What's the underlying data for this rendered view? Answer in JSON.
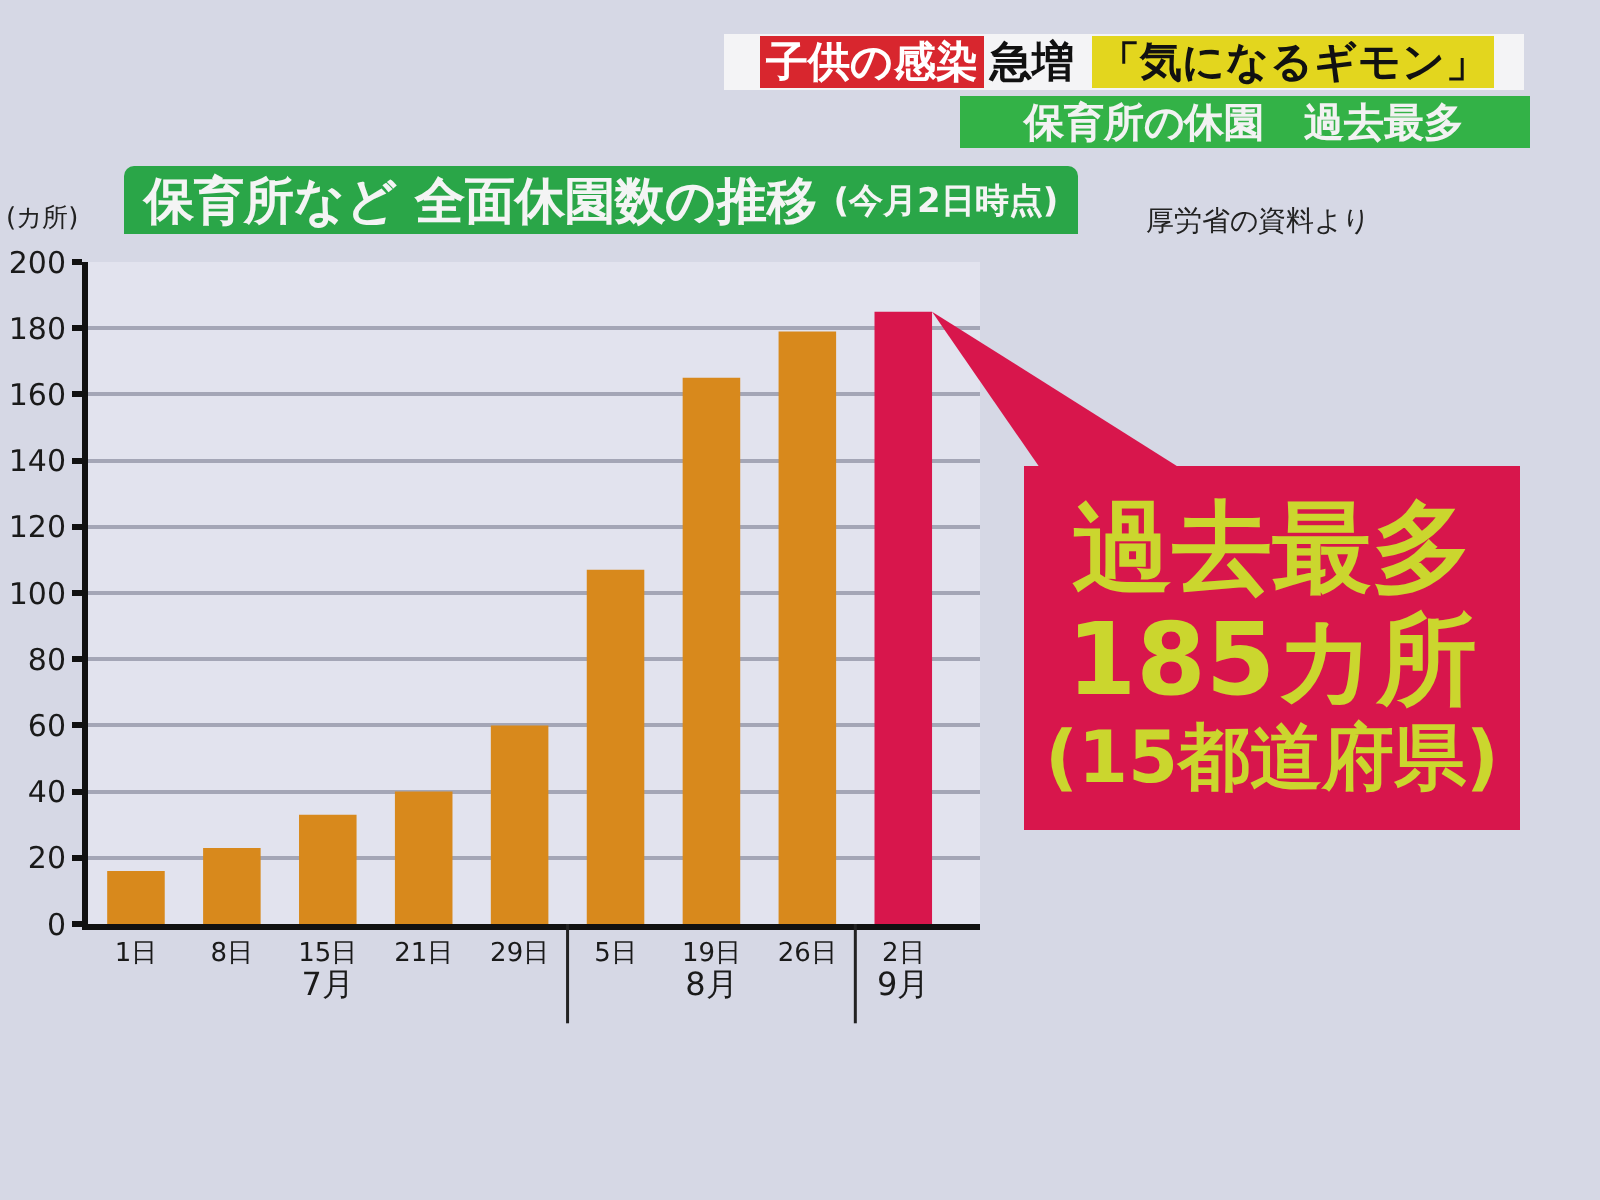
{
  "chart_data": {
    "type": "bar",
    "title": "保育所など 全面休園数の推移",
    "subtitle": "(今月2日時点)",
    "ylabel": "(カ所)",
    "categories": [
      "1日",
      "8日",
      "15日\n7月",
      "21日",
      "29日",
      "5日",
      "19日\n8月",
      "26日",
      "2日\n9月"
    ],
    "values": [
      16,
      23,
      33,
      40,
      60,
      107,
      165,
      179,
      185
    ],
    "colors": [
      "#d8891c",
      "#d8891c",
      "#d8891c",
      "#d8891c",
      "#d8891c",
      "#d8891c",
      "#d8891c",
      "#d8891c",
      "#d8164c"
    ],
    "ylim": [
      0,
      200
    ],
    "yticks": [
      0,
      20,
      40,
      60,
      80,
      100,
      120,
      140,
      160,
      180,
      200
    ],
    "grid": "y",
    "annotations": [
      "子供の感染",
      "急増",
      "「気になるギモン」",
      "保育所の休園　過去最多",
      "厚労省の資料より",
      {
        "text": "過去最多185カ所",
        "x": "2日\n9月",
        "y": 185
      },
      "(15都道府県)"
    ]
  }
}
